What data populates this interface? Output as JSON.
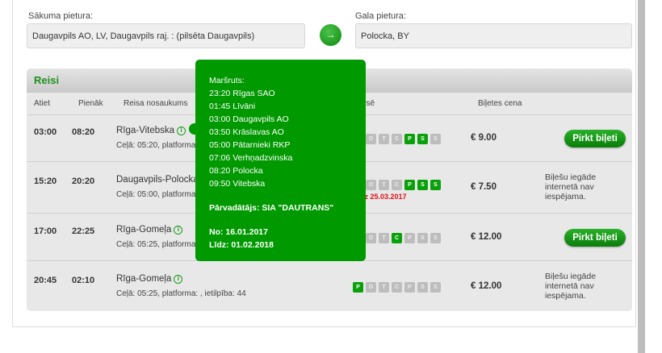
{
  "search": {
    "from_label": "Sākuma pietura:",
    "from_value": "Daugavpils AO, LV, Daugavpils raj. : (pilsēta Daugavpils)",
    "to_label": "Gala pietura:",
    "to_value": "Polocka, BY",
    "swap_icon": "arrow-right-icon"
  },
  "trips": {
    "title": "Reisi",
    "columns": [
      "Atiet",
      "Pienāk",
      "Reisa nosaukums",
      "Kursē",
      "Biļetes cena"
    ],
    "day_letters": [
      "P",
      "O",
      "T",
      "C",
      "P",
      "S",
      "S"
    ],
    "rows": [
      {
        "depart": "03:00",
        "arrive": "08:20",
        "name": "Rīga-Vitebska",
        "details": "Ceļā: 05:20, platforma:",
        "days": [
          false,
          false,
          false,
          false,
          true,
          true,
          false
        ],
        "note": "",
        "price": "€ 9.00",
        "action": "Pirkt biļeti"
      },
      {
        "depart": "15:20",
        "arrive": "20:20",
        "name": "Daugavpils-Polocka",
        "details": "Ceļā: 05:00, platforma:",
        "days": [
          false,
          false,
          false,
          false,
          true,
          true,
          true
        ],
        "note": "līdz 25.03.2017",
        "price": "€ 7.50",
        "unavailable": "Biļešu iegāde internetā nav iespējama."
      },
      {
        "depart": "17:00",
        "arrive": "22:25",
        "name": "Rīga-Gomeļa",
        "details": "Ceļā: 05:25, platforma:",
        "days": [
          false,
          false,
          false,
          true,
          false,
          false,
          false
        ],
        "note": "",
        "price": "€ 12.00",
        "action": "Pirkt biļeti"
      },
      {
        "depart": "20:45",
        "arrive": "02:10",
        "name": "Rīga-Gomeļa",
        "details": "Ceļā: 05:25, platforma: , ietilpība: 44",
        "days": [
          true,
          false,
          false,
          false,
          false,
          false,
          false
        ],
        "note": "",
        "price": "€ 12.00",
        "unavailable": "Biļešu iegāde internetā nav iespējama."
      }
    ]
  },
  "tooltip": {
    "route_label": "Maršruts:",
    "stops": [
      "23:20 Rīgas SAO",
      "01:45 Līvāni",
      "03:00 Daugavpils AO",
      "03:50 Krāslavas AO",
      "05:00 Pātarnieki RKP",
      "07:06 Verhņadzvinska",
      "08:20 Polocka",
      "09:50 Vitebska"
    ],
    "carrier": "Pārvadātājs: SIA \"DAUTRANS\"",
    "from": "No: 16.01.2017",
    "to": "Līdz: 01.02.2018"
  },
  "colors": {
    "accent": "#009900",
    "warning": "#e0101a"
  }
}
